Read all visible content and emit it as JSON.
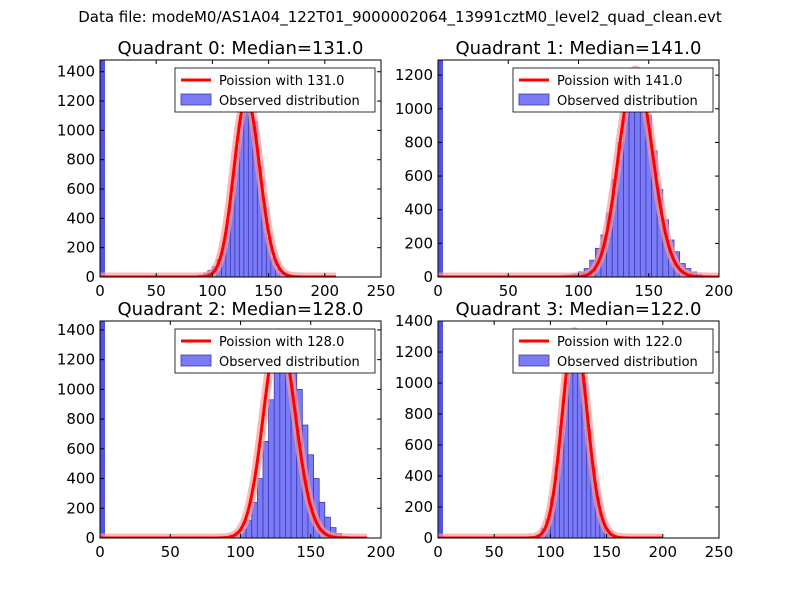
{
  "figure": {
    "suptitle": "Data file: modeM0/AS1A04_122T01_9000002064_13991cztM0_level2_quad_clean.evt"
  },
  "colors": {
    "bar_fill": "#7b7bf7",
    "bar_edge": "#3a3ab0",
    "poisson_line": "#ff0000",
    "poisson_halo": "#ff9999",
    "spike": "#5252e8"
  },
  "chart_data": [
    {
      "type": "bar",
      "title": "Quadrant 0: Median=131.0",
      "xlim": [
        0,
        250
      ],
      "ylim": [
        0,
        1480
      ],
      "xticks": [
        0,
        50,
        100,
        150,
        200,
        250
      ],
      "yticks": [
        0,
        200,
        400,
        600,
        800,
        1000,
        1200,
        1400
      ],
      "legend": [
        "Poission with 131.0",
        "Observed distribution"
      ],
      "legend_position": "top-right",
      "spike": {
        "x": 0,
        "value": 1480
      },
      "bin_width": 4,
      "bin_starts": [
        84,
        88,
        92,
        96,
        100,
        104,
        108,
        112,
        116,
        120,
        124,
        128,
        132,
        136,
        140,
        144,
        148,
        152,
        156,
        160,
        164,
        168,
        172
      ],
      "counts": [
        3,
        12,
        25,
        45,
        70,
        120,
        200,
        360,
        620,
        880,
        1100,
        1160,
        1200,
        1060,
        750,
        480,
        270,
        130,
        55,
        22,
        8,
        3,
        1
      ],
      "poisson": {
        "mean": 131.0,
        "peak": 1220,
        "x_range": [
          0,
          210
        ]
      }
    },
    {
      "type": "bar",
      "title": "Quadrant 1: Median=141.0",
      "xlim": [
        0,
        200
      ],
      "ylim": [
        0,
        1290
      ],
      "xticks": [
        0,
        50,
        100,
        150,
        200
      ],
      "yticks": [
        0,
        200,
        400,
        600,
        800,
        1000,
        1200
      ],
      "legend": [
        "Poission with 141.0",
        "Observed distribution"
      ],
      "legend_position": "top-right",
      "spike": {
        "x": 0,
        "value": 1290
      },
      "bin_width": 4,
      "bin_starts": [
        84,
        88,
        92,
        96,
        100,
        104,
        108,
        112,
        116,
        120,
        124,
        128,
        132,
        136,
        140,
        144,
        148,
        152,
        156,
        160,
        164,
        168,
        172,
        176,
        180,
        184
      ],
      "counts": [
        5,
        8,
        12,
        18,
        30,
        50,
        100,
        170,
        250,
        380,
        580,
        800,
        1050,
        1180,
        1220,
        1160,
        960,
        750,
        520,
        340,
        220,
        150,
        80,
        50,
        30,
        15
      ],
      "poisson": {
        "mean": 141.0,
        "peak": 1230,
        "x_range": [
          0,
          200
        ]
      }
    },
    {
      "type": "bar",
      "title": "Quadrant 2: Median=128.0",
      "xlim": [
        0,
        200
      ],
      "ylim": [
        0,
        1460
      ],
      "xticks": [
        0,
        50,
        100,
        150,
        200
      ],
      "yticks": [
        0,
        200,
        400,
        600,
        800,
        1000,
        1200,
        1400
      ],
      "legend": [
        "Poission with 128.0",
        "Observed distribution"
      ],
      "legend_position": "top-right",
      "spike": {
        "x": 0,
        "value": 1460
      },
      "bin_width": 4,
      "bin_starts": [
        84,
        88,
        92,
        96,
        100,
        104,
        108,
        112,
        116,
        120,
        124,
        128,
        132,
        136,
        140,
        144,
        148,
        152,
        156,
        160,
        164,
        168,
        172
      ],
      "counts": [
        3,
        10,
        20,
        35,
        60,
        120,
        240,
        400,
        650,
        930,
        1150,
        1250,
        1300,
        1200,
        1000,
        760,
        560,
        400,
        240,
        140,
        70,
        30,
        10
      ],
      "poisson": {
        "mean": 128.0,
        "peak": 1380,
        "x_range": [
          0,
          190
        ]
      }
    },
    {
      "type": "bar",
      "title": "Quadrant 3: Median=122.0",
      "xlim": [
        0,
        250
      ],
      "ylim": [
        0,
        1400
      ],
      "xticks": [
        0,
        50,
        100,
        150,
        200,
        250
      ],
      "yticks": [
        0,
        200,
        400,
        600,
        800,
        1000,
        1200,
        1400
      ],
      "legend": [
        "Poission with 122.0",
        "Observed distribution"
      ],
      "legend_position": "top-right",
      "spike": {
        "x": 0,
        "value": 1400
      },
      "bin_width": 4,
      "bin_starts": [
        84,
        88,
        92,
        96,
        100,
        104,
        108,
        112,
        116,
        120,
        124,
        128,
        132,
        136,
        140,
        144,
        148,
        152,
        156,
        160
      ],
      "counts": [
        5,
        20,
        60,
        120,
        260,
        460,
        720,
        1000,
        1200,
        1260,
        1200,
        1000,
        700,
        450,
        260,
        120,
        60,
        25,
        10,
        4
      ],
      "poisson": {
        "mean": 122.0,
        "peak": 1330,
        "x_range": [
          0,
          200
        ]
      }
    }
  ]
}
